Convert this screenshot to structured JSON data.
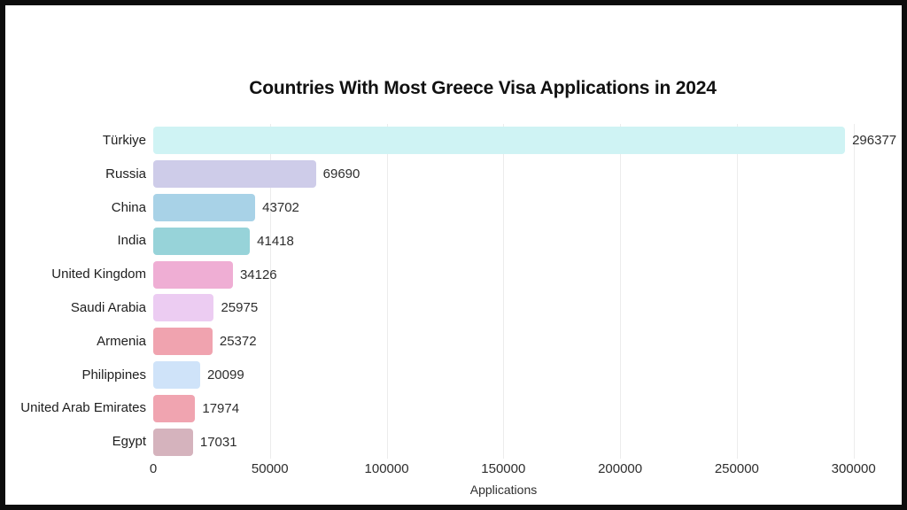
{
  "chart_data": {
    "type": "bar",
    "orientation": "horizontal",
    "title": "Countries With Most Greece Visa Applications in 2024",
    "xlabel": "Applications",
    "ylabel": "",
    "categories": [
      "Türkiye",
      "Russia",
      "China",
      "India",
      "United Kingdom",
      "Saudi Arabia",
      "Armenia",
      "Philippines",
      "United Arab Emirates",
      "Egypt"
    ],
    "values": [
      296377,
      69690,
      43702,
      41418,
      34126,
      25975,
      25372,
      20099,
      17974,
      17031
    ],
    "value_labels": [
      "296377",
      "69690",
      "43702",
      "41418",
      "34126",
      "25975",
      "25372",
      "20099",
      "17974",
      "17031"
    ],
    "bar_colors": [
      "#CFF3F4",
      "#CECCE9",
      "#A8D2E7",
      "#97D3D9",
      "#EFAED4",
      "#ECCCF2",
      "#F0A3AF",
      "#CFE3F9",
      "#F0A4B0",
      "#D5B3BD"
    ],
    "xticks": [
      0,
      50000,
      100000,
      150000,
      200000,
      250000,
      300000
    ],
    "xtick_labels": [
      "0",
      "50000",
      "100000",
      "150000",
      "200000",
      "250000",
      "300000"
    ],
    "xlim": [
      0,
      310000
    ],
    "grid": "vertical",
    "grid_color": "#ececec",
    "frame_color": "#0d0d0d",
    "background_color": "#ffffff"
  }
}
